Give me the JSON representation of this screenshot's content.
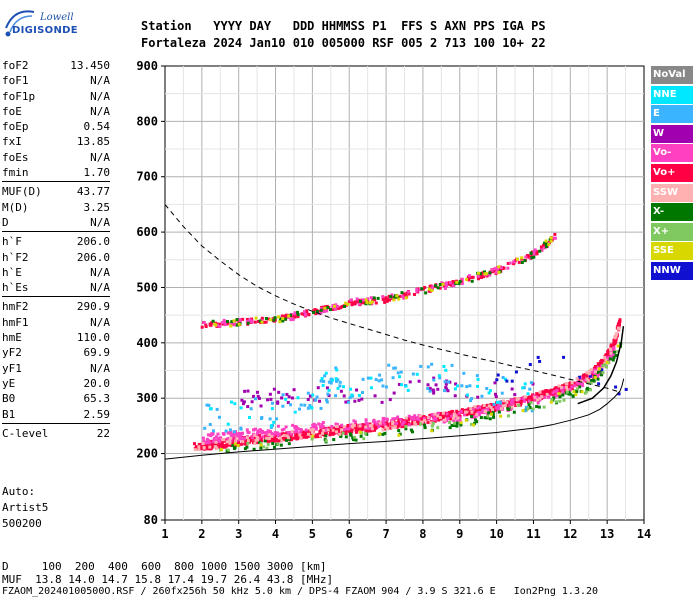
{
  "logo": {
    "top": "Lowell",
    "bottom": "DIGISONDE"
  },
  "header": {
    "line1": "Station   YYYY DAY   DDD HHMMSS P1  FFS S AXN PPS IGA PS",
    "line2": "Fortaleza 2024 Jan10 010 005000 RSF 005 2 713 100 10+ 22"
  },
  "params": [
    [
      {
        "name": "foF2",
        "value": "13.450"
      },
      {
        "name": "foF1",
        "value": "N/A"
      },
      {
        "name": "foF1p",
        "value": "N/A"
      },
      {
        "name": "foE",
        "value": "N/A"
      },
      {
        "name": "foEp",
        "value": "0.54"
      },
      {
        "name": "fxI",
        "value": "13.85"
      },
      {
        "name": "foEs",
        "value": "N/A"
      },
      {
        "name": "fmin",
        "value": "1.70"
      }
    ],
    [
      {
        "name": "MUF(D)",
        "value": "43.77"
      },
      {
        "name": "M(D)",
        "value": "3.25"
      },
      {
        "name": "D",
        "value": "N/A"
      }
    ],
    [
      {
        "name": "h`F",
        "value": "206.0"
      },
      {
        "name": "h`F2",
        "value": "206.0"
      },
      {
        "name": "h`E",
        "value": "N/A"
      },
      {
        "name": "h`Es",
        "value": "N/A"
      }
    ],
    [
      {
        "name": "hmF2",
        "value": "290.9"
      },
      {
        "name": "hmF1",
        "value": "N/A"
      },
      {
        "name": "hmE",
        "value": "110.0"
      },
      {
        "name": "yF2",
        "value": "69.9"
      },
      {
        "name": "yF1",
        "value": "N/A"
      },
      {
        "name": "yE",
        "value": "20.0"
      },
      {
        "name": "B0",
        "value": "65.3"
      },
      {
        "name": "B1",
        "value": "2.59"
      }
    ],
    [
      {
        "name": "C-level",
        "value": "22"
      }
    ]
  ],
  "auto": {
    "line1": "Auto:",
    "line2": "Artist5",
    "line3": "500200"
  },
  "legend": [
    {
      "label": "NoVal",
      "color": "#888888"
    },
    {
      "label": "NNE",
      "color": "#00e8ff"
    },
    {
      "label": "E",
      "color": "#3ab4ff"
    },
    {
      "label": "W",
      "color": "#a000b0"
    },
    {
      "label": "Vo-",
      "color": "#ff40c0"
    },
    {
      "label": "Vo+",
      "color": "#ff0044"
    },
    {
      "label": "SSW",
      "color": "#ffb0b0"
    },
    {
      "label": "X-",
      "color": "#007800"
    },
    {
      "label": "X+",
      "color": "#80c860"
    },
    {
      "label": "SSE",
      "color": "#d8d800"
    },
    {
      "label": "NNW",
      "color": "#1010d0"
    }
  ],
  "footer": {
    "d_line": "D     100  200  400  600  800 1000 1500 3000 [km]",
    "muf_line": "MUF  13.8 14.0 14.7 15.8 17.4 19.7 26.4 43.8 [MHz]",
    "file_line": "FZAOM_20240100500O.RSF / 260fx256h 50 kHz 5.0 km / DPS-4 FZAOM 904 / 3.9 S 321.6 E   Ion2Png 1.3.20"
  },
  "chart_data": {
    "type": "scatter",
    "x_ticks": [
      "1",
      "2",
      "3",
      "4",
      "5",
      "6",
      "7",
      "8",
      "9",
      "10",
      "11",
      "12",
      "13",
      "14"
    ],
    "y_ticks": [
      "80",
      "200",
      "300",
      "400",
      "500",
      "600",
      "700",
      "800",
      "900"
    ],
    "xlim": [
      1,
      14
    ],
    "ylim": [
      80,
      900
    ],
    "grid": true,
    "series": [
      {
        "name": "Vo+",
        "color": "#ff0044",
        "points": [
          [
            1.8,
            212
          ],
          [
            2.2,
            215
          ],
          [
            2.6,
            218
          ],
          [
            3.0,
            222
          ],
          [
            3.5,
            226
          ],
          [
            4.0,
            229
          ],
          [
            4.5,
            232
          ],
          [
            5.0,
            236
          ],
          [
            5.5,
            240
          ],
          [
            6.0,
            244
          ],
          [
            6.5,
            247
          ],
          [
            7.0,
            251
          ],
          [
            7.5,
            256
          ],
          [
            8.0,
            261
          ],
          [
            8.5,
            266
          ],
          [
            9.0,
            272
          ],
          [
            9.5,
            278
          ],
          [
            10.0,
            285
          ],
          [
            10.5,
            292
          ],
          [
            11.0,
            300
          ],
          [
            11.5,
            310
          ],
          [
            12.0,
            322
          ],
          [
            12.5,
            340
          ],
          [
            12.9,
            365
          ],
          [
            13.2,
            400
          ],
          [
            13.35,
            440
          ]
        ]
      },
      {
        "name": "Vo-",
        "color": "#ff40c0",
        "points": [
          [
            2.0,
            225
          ],
          [
            2.5,
            230
          ],
          [
            3.0,
            232
          ],
          [
            3.5,
            236
          ],
          [
            4.0,
            240
          ],
          [
            5.0,
            246
          ],
          [
            6.0,
            250
          ],
          [
            7.0,
            255
          ],
          [
            8.0,
            262
          ],
          [
            9.0,
            268
          ],
          [
            10.0,
            282
          ],
          [
            11.0,
            296
          ],
          [
            12.0,
            318
          ],
          [
            12.8,
            350
          ],
          [
            13.2,
            385
          ]
        ]
      },
      {
        "name": "W",
        "color": "#a000b0",
        "points": [
          [
            3.0,
            298
          ],
          [
            3.5,
            300
          ],
          [
            4.0,
            302
          ],
          [
            4.5,
            305
          ],
          [
            5.5,
            308
          ],
          [
            6.5,
            300
          ],
          [
            8.0,
            325
          ],
          [
            8.5,
            320
          ],
          [
            9.0,
            315
          ],
          [
            11.0,
            318
          ]
        ]
      },
      {
        "name": "E",
        "color": "#3ab4ff",
        "points": [
          [
            2.0,
            265
          ],
          [
            3.0,
            270
          ],
          [
            4.0,
            275
          ],
          [
            5.0,
            290
          ],
          [
            5.5,
            330
          ],
          [
            6.0,
            320
          ],
          [
            7.0,
            330
          ],
          [
            8.0,
            345
          ],
          [
            9.0,
            330
          ],
          [
            10.0,
            315
          ],
          [
            11.0,
            305
          ]
        ]
      },
      {
        "name": "X-",
        "color": "#007800",
        "points": [
          [
            2.5,
            210
          ],
          [
            4.5,
            220
          ],
          [
            7.5,
            240
          ],
          [
            9.5,
            262
          ],
          [
            11.5,
            295
          ],
          [
            12.5,
            320
          ],
          [
            13.4,
            395
          ]
        ]
      },
      {
        "name": "NNW",
        "color": "#1010d0",
        "points": [
          [
            10.0,
            340
          ],
          [
            10.5,
            330
          ],
          [
            11.2,
            370
          ],
          [
            12.8,
            340
          ],
          [
            13.6,
            300
          ]
        ]
      }
    ],
    "echo_band_2": {
      "name": "Vo+",
      "points": [
        [
          2.0,
          433
        ],
        [
          3.0,
          437
        ],
        [
          4.0,
          441
        ],
        [
          5.0,
          455
        ],
        [
          6.0,
          472
        ],
        [
          7.0,
          478
        ],
        [
          8.0,
          495
        ],
        [
          9.0,
          510
        ],
        [
          10.0,
          530
        ],
        [
          11.0,
          560
        ],
        [
          11.6,
          592
        ]
      ]
    },
    "curves": [
      {
        "name": "dashed",
        "points": [
          [
            1.0,
            650
          ],
          [
            1.5,
            610
          ],
          [
            2.0,
            575
          ],
          [
            2.5,
            548
          ],
          [
            3.0,
            523
          ],
          [
            3.5,
            502
          ],
          [
            4.0,
            485
          ],
          [
            4.5,
            470
          ],
          [
            5.0,
            457
          ],
          [
            5.5,
            445
          ],
          [
            6.0,
            435
          ],
          [
            6.5,
            425
          ],
          [
            7.0,
            415
          ],
          [
            7.5,
            405
          ],
          [
            8.0,
            396
          ],
          [
            8.5,
            388
          ],
          [
            9.0,
            380
          ],
          [
            9.5,
            372
          ],
          [
            10.0,
            365
          ],
          [
            10.5,
            357
          ],
          [
            11.0,
            350
          ],
          [
            11.5,
            342
          ],
          [
            12.0,
            334
          ],
          [
            12.5,
            326
          ],
          [
            13.0,
            318
          ],
          [
            13.3,
            312
          ]
        ]
      },
      {
        "name": "solid",
        "points": [
          [
            1.0,
            190
          ],
          [
            2.0,
            197
          ],
          [
            3.0,
            203
          ],
          [
            4.0,
            208
          ],
          [
            5.0,
            213
          ],
          [
            6.0,
            218
          ],
          [
            7.0,
            222
          ],
          [
            8.0,
            227
          ],
          [
            9.0,
            232
          ],
          [
            10.0,
            238
          ],
          [
            11.0,
            246
          ],
          [
            11.5,
            252
          ],
          [
            12.0,
            260
          ],
          [
            12.5,
            270
          ],
          [
            12.8,
            280
          ],
          [
            13.0,
            290
          ],
          [
            13.2,
            302
          ],
          [
            13.35,
            313
          ],
          [
            13.4,
            322
          ],
          [
            13.45,
            335
          ]
        ]
      },
      {
        "name": "profile",
        "points": [
          [
            12.2,
            290
          ],
          [
            12.6,
            300
          ],
          [
            12.9,
            318
          ],
          [
            13.1,
            340
          ],
          [
            13.25,
            365
          ],
          [
            13.38,
            400
          ],
          [
            13.44,
            430
          ]
        ]
      }
    ]
  }
}
